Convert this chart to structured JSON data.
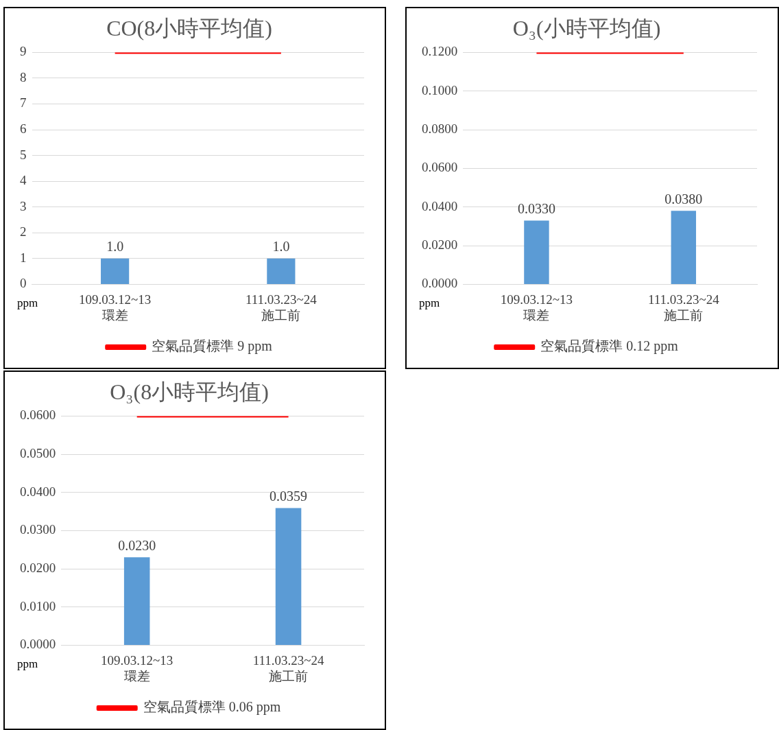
{
  "chart_data": [
    {
      "type": "bar",
      "title": "CO(8小時平均值)",
      "ylabel": "ppm",
      "categories": [
        "109.03.12~13\n環差",
        "111.03.23~24\n施工前"
      ],
      "marker": "none",
      "grid": "y",
      "legend": "bottom",
      "ylim": [
        0,
        9
      ],
      "yticks": [
        0,
        1,
        2,
        3,
        4,
        5,
        6,
        7,
        8,
        9
      ],
      "series": [
        {
          "color": "#5b9bd5",
          "values": [
            1,
            1
          ],
          "value_labels": [
            "1.0",
            "1.0"
          ]
        },
        {
          "type": "line",
          "name": "空氣品質標準 9 ppm",
          "color": "#ff0000",
          "values": [
            9,
            9
          ]
        }
      ]
    },
    {
      "type": "bar",
      "title": "O₃(小時平均值)",
      "ylabel": "ppm",
      "categories": [
        "109.03.12~13\n環差",
        "111.03.23~24\n施工前"
      ],
      "marker": "none",
      "grid": "y",
      "legend": "bottom",
      "ylim": [
        0,
        0.12
      ],
      "yticks": [
        {
          "value": 0,
          "label": "0.0000"
        },
        {
          "value": 0.02,
          "label": "0.0200"
        },
        {
          "value": 0.04,
          "label": "0.0400"
        },
        {
          "value": 0.06,
          "label": "0.0600"
        },
        {
          "value": 0.08,
          "label": "0.0800"
        },
        {
          "value": 0.1,
          "label": "0.1000"
        },
        {
          "value": 0.12,
          "label": "0.1200"
        }
      ],
      "series": [
        {
          "color": "#5b9bd5",
          "values": [
            0.033,
            0.038
          ],
          "value_labels": [
            "0.0330",
            "0.0380"
          ]
        },
        {
          "type": "line",
          "name": "空氣品質標準 0.12 ppm",
          "color": "#ff0000",
          "values": [
            0.12,
            0.12
          ]
        }
      ]
    },
    {
      "type": "bar",
      "title": "O₃(8小時平均值)",
      "ylabel": "ppm",
      "categories": [
        "109.03.12~13\n環差",
        "111.03.23~24\n施工前"
      ],
      "marker": "none",
      "grid": "y",
      "legend": "bottom",
      "ylim": [
        0,
        0.06
      ],
      "yticks": [
        {
          "value": 0,
          "label": "0.0000"
        },
        {
          "value": 0.01,
          "label": "0.0100"
        },
        {
          "value": 0.02,
          "label": "0.0200"
        },
        {
          "value": 0.03,
          "label": "0.0300"
        },
        {
          "value": 0.04,
          "label": "0.0400"
        },
        {
          "value": 0.05,
          "label": "0.0500"
        },
        {
          "value": 0.06,
          "label": "0.0600"
        }
      ],
      "series": [
        {
          "color": "#5b9bd5",
          "values": [
            0.023,
            0.0359
          ],
          "value_labels": [
            "0.0230",
            "0.0359"
          ]
        },
        {
          "type": "line",
          "name": "空氣品質標準 0.06 ppm",
          "color": "#ff0000",
          "values": [
            0.06,
            0.06
          ]
        }
      ]
    }
  ]
}
